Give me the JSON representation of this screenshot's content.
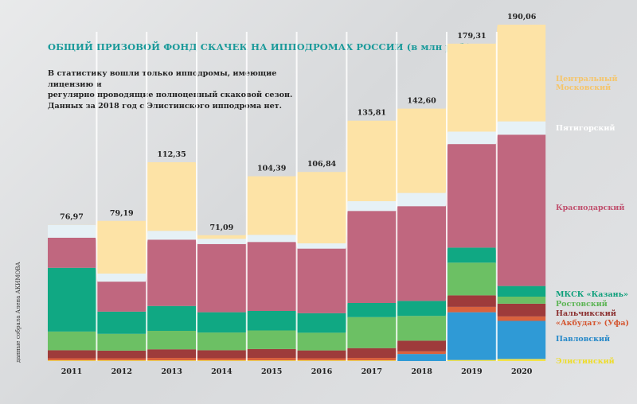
{
  "title": "ОБЩИЙ ПРИЗОВОЙ ФОНД СКАЧЕК НА ИППОДРОМАХ РОССИИ (в млн руб.)",
  "subtitle_lines": [
    "В статистику вошли только ипподромы, имеющие лицензию и",
    "регулярно проводящие полноценный скаковой сезон.",
    "Данных за 2018 год с Элистинского ипподрома нет."
  ],
  "credit": "данные собрала Алена АКИМОВА",
  "colors": {
    "elista": "#f3e24a",
    "pavlovsky": "#2f9ad6",
    "ufa": "#d9623e",
    "nalchik": "#9e3b3b",
    "rostov": "#6cc064",
    "kazan": "#10a883",
    "krasnodar": "#c0677f",
    "pyatigorsk": "#e6f1f6",
    "moscow": "#fde3a6"
  },
  "chart_data": {
    "type": "bar",
    "stacked": true,
    "categories": [
      "2011",
      "2012",
      "2013",
      "2014",
      "2015",
      "2016",
      "2017",
      "2018",
      "2019",
      "2020"
    ],
    "totals": [
      "76,97",
      "79,19",
      "112,35",
      "71,09",
      "104,39",
      "106,84",
      "135,81",
      "142,60",
      "179,31",
      "190,06"
    ],
    "total_values": [
      76.97,
      79.19,
      112.35,
      71.09,
      104.39,
      106.84,
      135.81,
      142.6,
      179.31,
      190.06
    ],
    "series": [
      {
        "name": "Элистинский",
        "key": "elista",
        "values": [
          0.4,
          0.4,
          0.4,
          0.4,
          0.4,
          0.4,
          0.4,
          0,
          0.6,
          1.2
        ]
      },
      {
        "name": "Павловский",
        "key": "pavlovsky",
        "values": [
          0,
          0,
          0,
          0,
          0,
          0,
          0,
          4.0,
          27.0,
          21.5
        ]
      },
      {
        "name": "«Акбудат» (Уфа)",
        "key": "ufa",
        "values": [
          1.2,
          1.2,
          1.4,
          1.2,
          1.4,
          1.2,
          1.4,
          1.5,
          3.0,
          2.5
        ]
      },
      {
        "name": "Нальчикский",
        "key": "nalchik",
        "values": [
          4.5,
          4.3,
          4.8,
          4.5,
          5.0,
          4.4,
          5.5,
          6.0,
          6.5,
          7.2
        ]
      },
      {
        "name": "Ростовский",
        "key": "rostov",
        "values": [
          10.6,
          9.5,
          10.5,
          10.0,
          10.5,
          10.0,
          17.5,
          14.0,
          18.5,
          4.0
        ]
      },
      {
        "name": "МКСК «Казань»",
        "key": "kazan",
        "values": [
          36.0,
          12.5,
          14.0,
          11.5,
          11.0,
          11.0,
          8.0,
          8.5,
          8.5,
          6.0
        ]
      },
      {
        "name": "Краснодарский",
        "key": "krasnodar",
        "values": [
          17.0,
          17.0,
          37.5,
          38.5,
          39.0,
          36.5,
          52.0,
          53.5,
          58.5,
          85.5
        ]
      },
      {
        "name": "Пятигорский",
        "key": "pyatigorsk",
        "values": [
          7.2,
          4.5,
          5.0,
          3.0,
          4.0,
          3.0,
          5.5,
          7.5,
          7.0,
          7.5
        ]
      },
      {
        "name": "Центральный Московский",
        "key": "moscow",
        "values": [
          0.07,
          29.79,
          38.75,
          1.99,
          33.09,
          40.34,
          45.51,
          47.6,
          49.71,
          54.66
        ]
      }
    ],
    "ylim": [
      0,
      190.06
    ],
    "xlabel": "",
    "ylabel": "",
    "grid": false,
    "legend": "right"
  },
  "legend_labels": {
    "moscow": [
      "Центральный",
      "Московский"
    ],
    "pyatigorsk": [
      "Пятигорский"
    ],
    "krasnodar": [
      "Краснодарский"
    ],
    "kazan": [
      "МКСК «Казань»"
    ],
    "rostov": [
      "Ростовский"
    ],
    "nalchik": [
      "Нальчикский"
    ],
    "ufa": [
      "«Акбудат» (Уфа)"
    ],
    "pavlovsky": [
      "Павловский"
    ],
    "elista": [
      "Элистинский"
    ]
  }
}
